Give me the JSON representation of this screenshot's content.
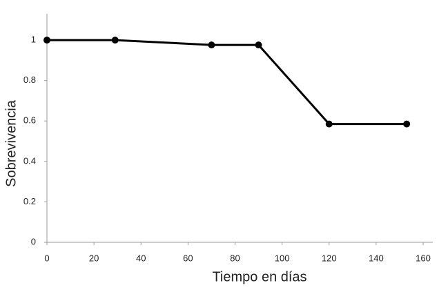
{
  "chart_data": {
    "type": "line",
    "x_label": "Tiempo en días",
    "y_label": "Sobrevivencia",
    "x": [
      0,
      29,
      70,
      90,
      120,
      153
    ],
    "values": [
      1,
      1,
      0.976,
      0.976,
      0.585,
      0.585
    ],
    "color": "#000000",
    "xlim": [
      0,
      160
    ],
    "xticks": [
      0,
      20,
      40,
      60,
      80,
      100,
      120,
      140,
      160
    ],
    "ylim": [
      0,
      1.13
    ],
    "yticks": [
      0,
      0.2,
      0.4,
      0.6,
      0.8,
      1
    ],
    "grid": false
  }
}
